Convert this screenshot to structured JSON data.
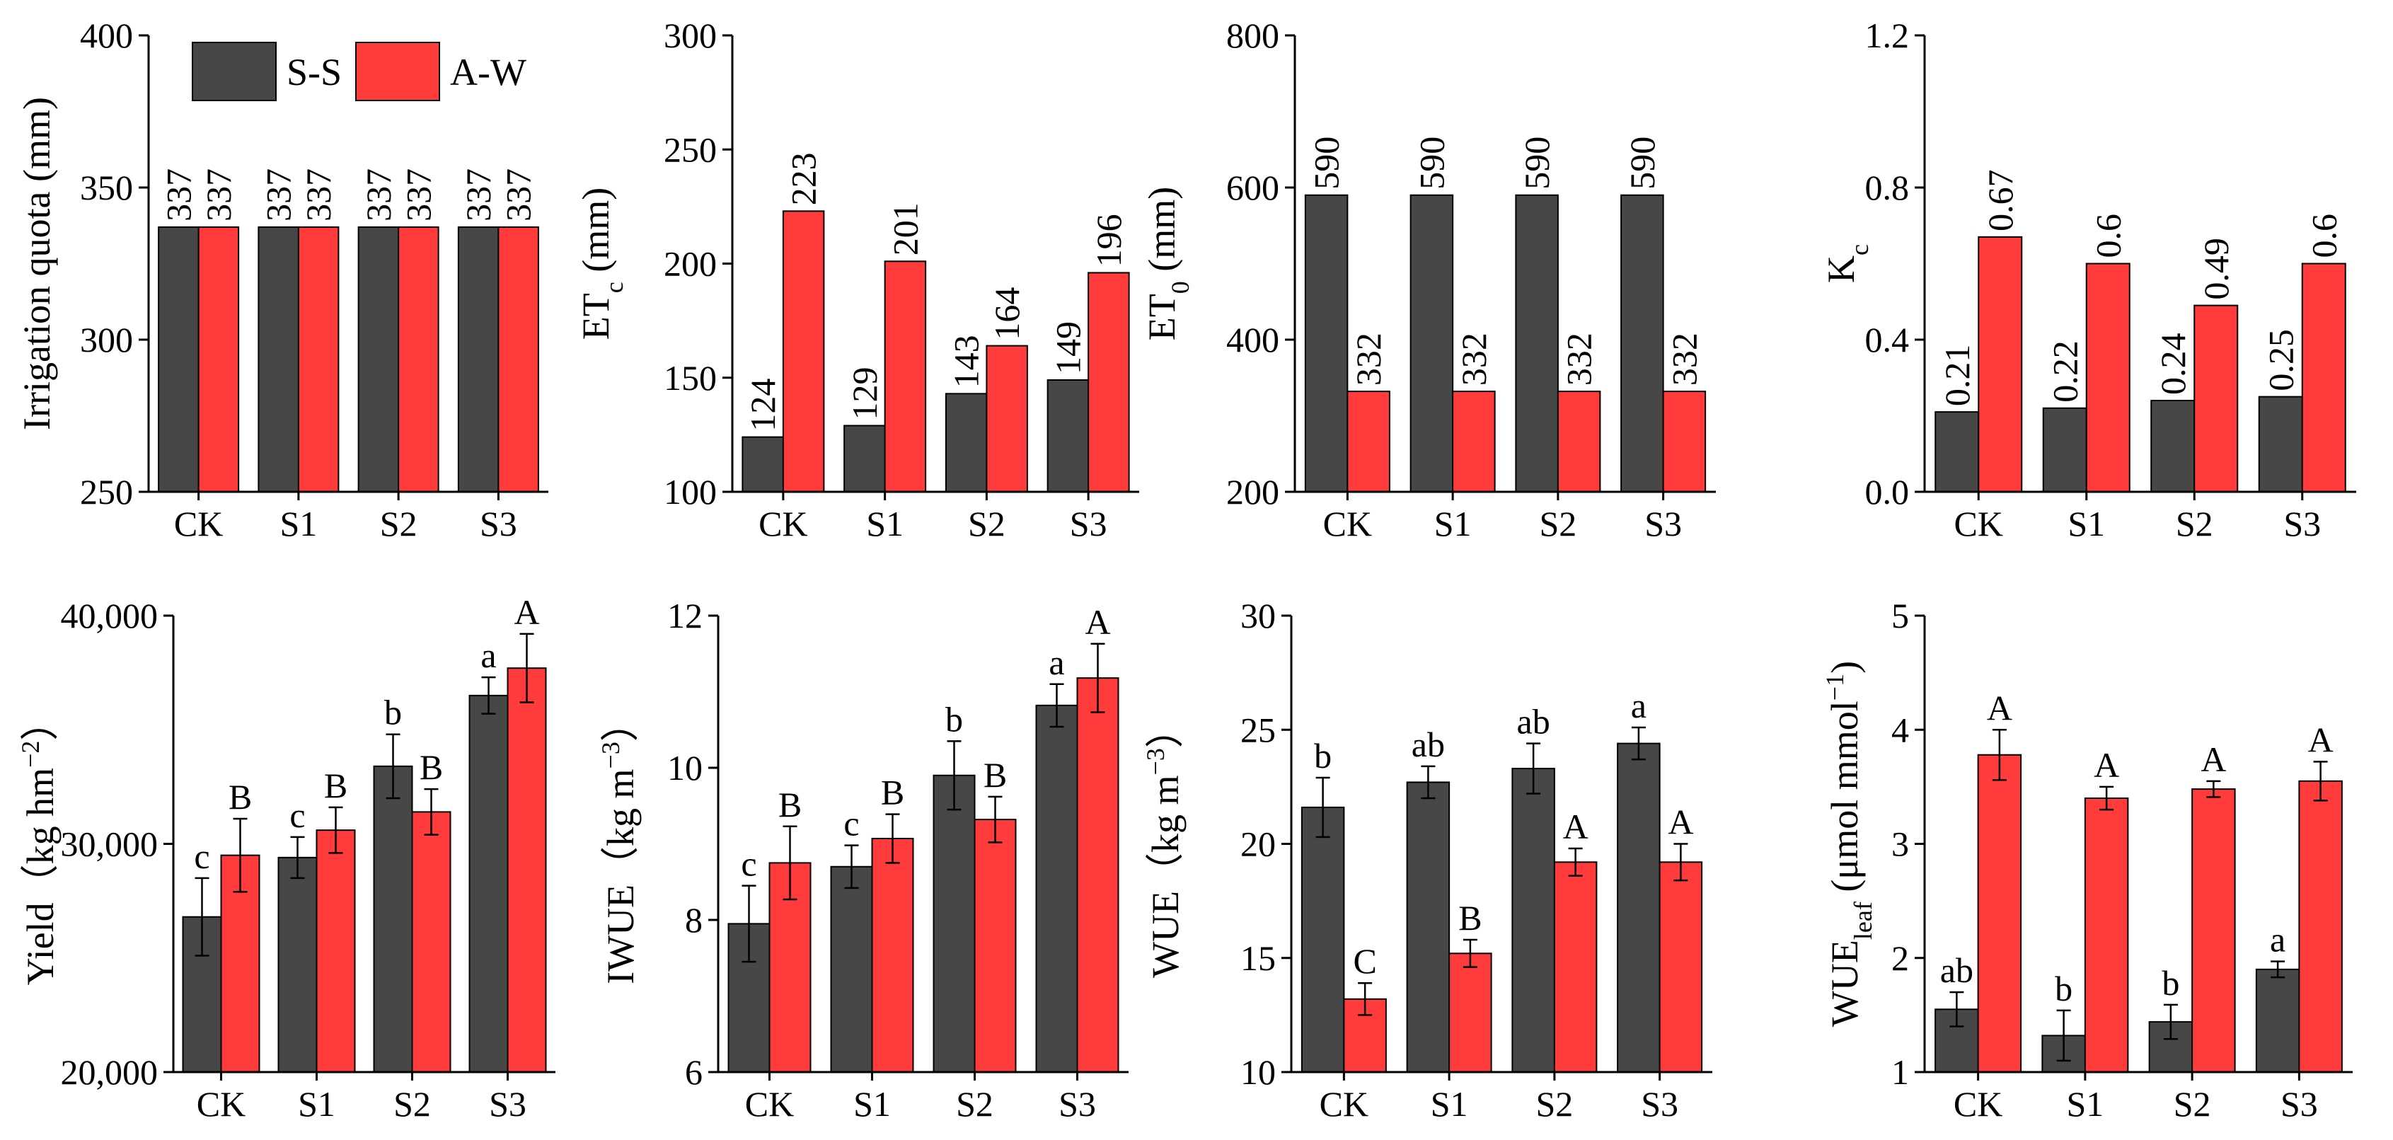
{
  "colors": {
    "ss": "#474747",
    "aw": "#ff3b3b",
    "axis": "#000000"
  },
  "legend": {
    "ss_label": "S-S",
    "aw_label": "A-W",
    "placement": "top-left of first panel"
  },
  "chart_data": [
    {
      "id": "irrigation",
      "type": "bar",
      "ylabel": "Irrigation quota (mm)",
      "ylim": [
        250,
        400
      ],
      "yticks": [
        250,
        300,
        350,
        400
      ],
      "ytick_labels": [
        "250",
        "300",
        "350",
        "400"
      ],
      "categories": [
        "CK",
        "S1",
        "S2",
        "S3"
      ],
      "series": [
        {
          "name": "S-S",
          "values": [
            337,
            337,
            337,
            337
          ],
          "labels": [
            "337",
            "337",
            "337",
            "337"
          ]
        },
        {
          "name": "A-W",
          "values": [
            337,
            337,
            337,
            337
          ],
          "labels": [
            "337",
            "337",
            "337",
            "337"
          ]
        }
      ]
    },
    {
      "id": "etc",
      "type": "bar",
      "ylabel": "ETc (mm)",
      "ylabel_main": "ET",
      "ylabel_sub": "c",
      "ylabel_rest": " (mm)",
      "ylim": [
        100,
        300
      ],
      "yticks": [
        100,
        150,
        200,
        250,
        300
      ],
      "ytick_labels": [
        "100",
        "150",
        "200",
        "250",
        "300"
      ],
      "categories": [
        "CK",
        "S1",
        "S2",
        "S3"
      ],
      "series": [
        {
          "name": "S-S",
          "values": [
            124,
            129,
            143,
            149
          ],
          "labels": [
            "124",
            "129",
            "143",
            "149"
          ]
        },
        {
          "name": "A-W",
          "values": [
            223,
            201,
            164,
            196
          ],
          "labels": [
            "223",
            "201",
            "164",
            "196"
          ]
        }
      ]
    },
    {
      "id": "et0",
      "type": "bar",
      "ylabel": "ET0 (mm)",
      "ylabel_main": "ET",
      "ylabel_sub": "0",
      "ylabel_rest": " (mm)",
      "ylim": [
        200,
        800
      ],
      "yticks": [
        200,
        400,
        600,
        800
      ],
      "ytick_labels": [
        "200",
        "400",
        "600",
        "800"
      ],
      "categories": [
        "CK",
        "S1",
        "S2",
        "S3"
      ],
      "series": [
        {
          "name": "S-S",
          "values": [
            590,
            590,
            590,
            590
          ],
          "labels": [
            "590",
            "590",
            "590",
            "590"
          ]
        },
        {
          "name": "A-W",
          "values": [
            332,
            332,
            332,
            332
          ],
          "labels": [
            "332",
            "332",
            "332",
            "332"
          ]
        }
      ]
    },
    {
      "id": "kc",
      "type": "bar",
      "ylabel": "Kc",
      "ylabel_main": "K",
      "ylabel_sub": "c",
      "ylim": [
        0,
        1.2
      ],
      "yticks": [
        0,
        0.4,
        0.8,
        1.2
      ],
      "ytick_labels": [
        "0.0",
        "0.4",
        "0.8",
        "1.2"
      ],
      "categories": [
        "CK",
        "S1",
        "S2",
        "S3"
      ],
      "series": [
        {
          "name": "S-S",
          "values": [
            0.21,
            0.22,
            0.24,
            0.25
          ],
          "labels": [
            "0.21",
            "0.22",
            "0.24",
            "0.25"
          ]
        },
        {
          "name": "A-W",
          "values": [
            0.67,
            0.6,
            0.49,
            0.6
          ],
          "labels": [
            "0.67",
            "0.6",
            "0.49",
            "0.6"
          ]
        }
      ]
    },
    {
      "id": "yield",
      "type": "bar",
      "ylabel": "Yield（kg hm−2）",
      "ylabel_main": "Yield（kg hm",
      "ylabel_sup": "−2",
      "ylabel_rest": "）",
      "ylim": [
        20000,
        40000
      ],
      "yticks": [
        20000,
        30000,
        40000
      ],
      "ytick_labels": [
        "20,000",
        "30,000",
        "40,000"
      ],
      "categories": [
        "CK",
        "S1",
        "S2",
        "S3"
      ],
      "series": [
        {
          "name": "S-S",
          "values": [
            26800,
            29400,
            33400,
            36500
          ],
          "errors": [
            1700,
            900,
            1400,
            800
          ],
          "sig": [
            "c",
            "c",
            "b",
            "a"
          ]
        },
        {
          "name": "A-W",
          "values": [
            29500,
            30600,
            31400,
            37700
          ],
          "errors": [
            1600,
            1000,
            1000,
            1500
          ],
          "sig": [
            "B",
            "B",
            "B",
            "A"
          ]
        }
      ]
    },
    {
      "id": "iwue",
      "type": "bar",
      "ylabel": "IWUE（kg m−3）",
      "ylabel_main": "IWUE（kg m",
      "ylabel_sup": "−3",
      "ylabel_rest": "）",
      "ylim": [
        6,
        12
      ],
      "yticks": [
        6,
        8,
        10,
        12
      ],
      "ytick_labels": [
        "6",
        "8",
        "10",
        "12"
      ],
      "categories": [
        "CK",
        "S1",
        "S2",
        "S3"
      ],
      "series": [
        {
          "name": "S-S",
          "values": [
            7.95,
            8.7,
            9.9,
            10.82
          ],
          "errors": [
            0.5,
            0.28,
            0.45,
            0.28
          ],
          "sig": [
            "c",
            "c",
            "b",
            "a"
          ]
        },
        {
          "name": "A-W",
          "values": [
            8.75,
            9.07,
            9.32,
            11.18
          ],
          "errors": [
            0.48,
            0.32,
            0.3,
            0.45
          ],
          "sig": [
            "B",
            "B",
            "B",
            "A"
          ]
        }
      ]
    },
    {
      "id": "wue",
      "type": "bar",
      "ylabel": "WUE（kg m−3）",
      "ylabel_main": "WUE（kg m",
      "ylabel_sup": "−3",
      "ylabel_rest": "）",
      "ylim": [
        10,
        30
      ],
      "yticks": [
        10,
        15,
        20,
        25,
        30
      ],
      "ytick_labels": [
        "10",
        "15",
        "20",
        "25",
        "30"
      ],
      "categories": [
        "CK",
        "S1",
        "S2",
        "S3"
      ],
      "series": [
        {
          "name": "S-S",
          "values": [
            21.6,
            22.7,
            23.3,
            24.4
          ],
          "errors": [
            1.3,
            0.7,
            1.1,
            0.7
          ],
          "sig": [
            "b",
            "ab",
            "ab",
            "a"
          ]
        },
        {
          "name": "A-W",
          "values": [
            13.2,
            15.2,
            19.2,
            19.2
          ],
          "errors": [
            0.7,
            0.6,
            0.6,
            0.8
          ],
          "sig": [
            "C",
            "B",
            "A",
            "A"
          ]
        }
      ]
    },
    {
      "id": "wueleaf",
      "type": "bar",
      "ylabel": "WUEleaf (μmol mmol−1)",
      "ylabel_main": "WUE",
      "ylabel_sub": "leaf",
      "ylabel_rest": " (μmol mmol",
      "ylabel_sup": "−1",
      "ylabel_end": ")",
      "ylim": [
        1,
        5
      ],
      "yticks": [
        1,
        2,
        3,
        4,
        5
      ],
      "ytick_labels": [
        "1",
        "2",
        "3",
        "4",
        "5"
      ],
      "categories": [
        "CK",
        "S1",
        "S2",
        "S3"
      ],
      "series": [
        {
          "name": "S-S",
          "values": [
            1.55,
            1.32,
            1.44,
            1.9
          ],
          "errors": [
            0.15,
            0.22,
            0.15,
            0.07
          ],
          "sig": [
            "ab",
            "b",
            "b",
            "a"
          ]
        },
        {
          "name": "A-W",
          "values": [
            3.78,
            3.4,
            3.48,
            3.55
          ],
          "errors": [
            0.22,
            0.1,
            0.07,
            0.17
          ],
          "sig": [
            "A",
            "A",
            "A",
            "A"
          ]
        }
      ]
    }
  ]
}
